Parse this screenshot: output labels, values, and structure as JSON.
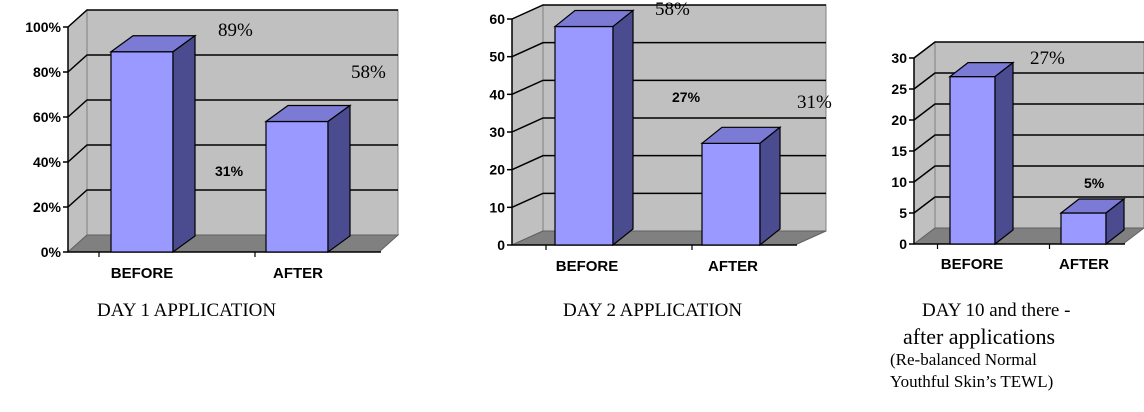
{
  "chart_data": [
    {
      "type": "bar",
      "categories": [
        "BEFORE",
        "AFTER"
      ],
      "values": [
        89,
        58
      ],
      "ylim": [
        0,
        100
      ],
      "ytick_labels": [
        "0%",
        "20%",
        "40%",
        "60%",
        "80%",
        "100%"
      ],
      "annotations": [
        "89%",
        "58%",
        "31%"
      ],
      "caption": "DAY 1 APPLICATION",
      "grid": true,
      "bar_color": "#9999ff"
    },
    {
      "type": "bar",
      "categories": [
        "BEFORE",
        "AFTER"
      ],
      "values": [
        58,
        27
      ],
      "ylim": [
        0,
        60
      ],
      "ytick_labels": [
        "0",
        "10",
        "20",
        "30",
        "40",
        "50",
        "60"
      ],
      "annotations": [
        "58%",
        "31%",
        "27%"
      ],
      "caption": "DAY 2 APPLICATION",
      "grid": true,
      "bar_color": "#9999ff"
    },
    {
      "type": "bar",
      "categories": [
        "BEFORE",
        "AFTER"
      ],
      "values": [
        27,
        5
      ],
      "ylim": [
        0,
        30
      ],
      "ytick_labels": [
        "0",
        "5",
        "10",
        "15",
        "20",
        "25",
        "30"
      ],
      "annotations": [
        "27%",
        "5%"
      ],
      "caption_lines": [
        "DAY 10 and there -",
        "after applications",
        "(Re-balanced Normal",
        "Youthful Skin’s TEWL)"
      ],
      "grid": true,
      "bar_color": "#9999ff"
    }
  ]
}
